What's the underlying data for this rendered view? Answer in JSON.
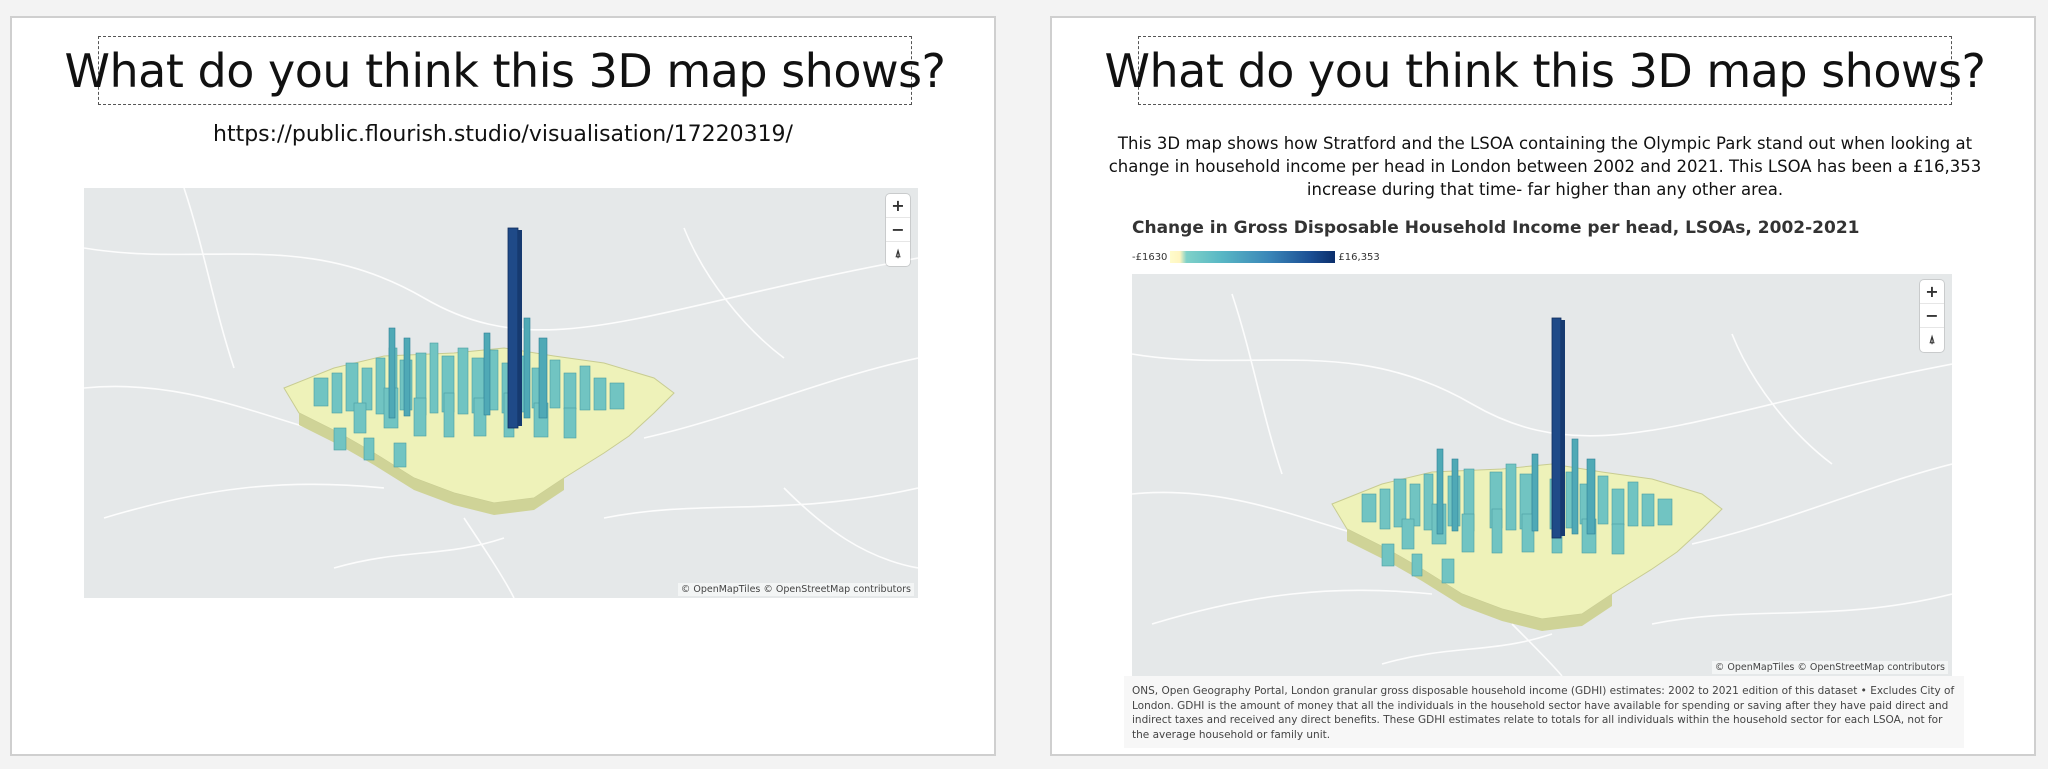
{
  "left_slide": {
    "title": "What do you think this 3D map shows?",
    "url": "https://public.flourish.studio/visualisation/17220319/",
    "map": {
      "zoom_in": "+",
      "zoom_out": "−",
      "compass": "⍋",
      "attribution": "© OpenMapTiles © OpenStreetMap contributors"
    }
  },
  "right_slide": {
    "title": "What do you think this 3D map shows?",
    "description": "This 3D map shows how Stratford and the LSOA containing the Olympic Park stand out when looking at change in household income per head in London between 2002 and 2021. This LSOA has been a £16,353 increase during that time- far higher than any other area.",
    "chart_title": "Change in Gross Disposable Household Income per head, LSOAs, 2002-2021",
    "legend": {
      "min_label": "-£1630",
      "max_label": "£16,353"
    },
    "map": {
      "zoom_in": "+",
      "zoom_out": "−",
      "compass": "⍋",
      "attribution": "© OpenMapTiles © OpenStreetMap contributors"
    },
    "source_note": "ONS, Open Geography Portal, London granular gross disposable household income (GDHI) estimates: 2002 to 2021 edition of this dataset • Excludes City of London. GDHI is the amount of money that all the individuals in the household sector have available for spending or saving after they have paid direct and indirect taxes and received any direct benefits. These GDHI estimates relate to totals for all individuals within the household sector for each LSOA, not for the average household or family unit."
  },
  "colors": {
    "map_background": "#e5e8e9",
    "low_value": "#fdf8c4",
    "mid_value": "#6cc3c6",
    "high_value": "#1b3f7e"
  }
}
